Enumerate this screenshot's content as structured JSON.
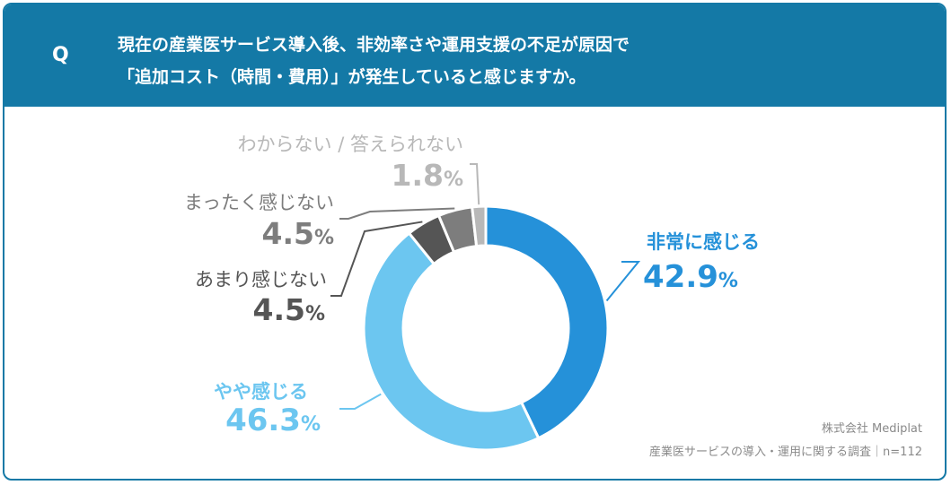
{
  "question": {
    "label": "Q",
    "line1": "現在の産業医サービス導入後、非効率さや運用支援の不足が原因で",
    "line2": "「追加コスト（時間・費用）」が発生していると感じますか。"
  },
  "colors": {
    "header_bg": "#1479a6",
    "very": "#2591d9",
    "somewhat": "#6cc6f0",
    "not_much": "#555555",
    "not_at_all": "#7d7d7d",
    "unknown": "#b8b8b8"
  },
  "chart_data": {
    "type": "pie",
    "variant": "donut",
    "unit": "%",
    "categories": [
      "非常に感じる",
      "やや感じる",
      "あまり感じない",
      "まったく感じない",
      "わからない / 答えられない"
    ],
    "values": [
      42.9,
      46.3,
      4.5,
      4.5,
      1.8
    ],
    "start": "12 o'clock, clockwise"
  },
  "source": {
    "company": "株式会社 Mediplat",
    "survey": "産業医サービスの導入・運用に関する調査｜n=112"
  }
}
